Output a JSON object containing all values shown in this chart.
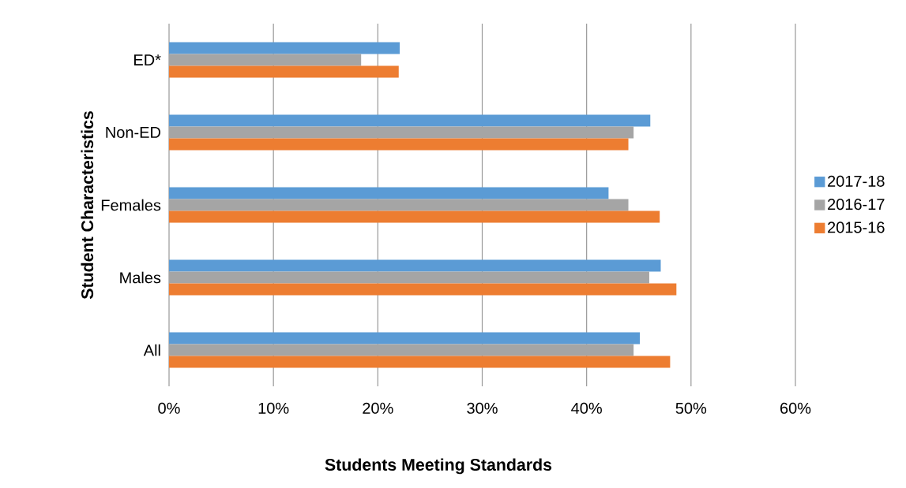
{
  "chart_data": {
    "type": "bar",
    "orientation": "horizontal",
    "categories": [
      "ED*",
      "Non-ED",
      "Females",
      "Males",
      "All"
    ],
    "series": [
      {
        "name": "2017-18",
        "color": "#5b9bd5",
        "values": [
          22.1,
          46.1,
          42.1,
          47.1,
          45.1
        ]
      },
      {
        "name": "2016-17",
        "color": "#a5a5a5",
        "values": [
          18.4,
          44.5,
          44.0,
          46.0,
          44.5
        ]
      },
      {
        "name": "2015-16",
        "color": "#ed7d31",
        "values": [
          22.0,
          44.0,
          47.0,
          48.6,
          48.0
        ]
      }
    ],
    "xlabel": "Students Meeting Standards",
    "ylabel": "Student Characteristics",
    "xlim": [
      0,
      60
    ],
    "xticks": [
      {
        "value": 0,
        "label": "0%"
      },
      {
        "value": 10,
        "label": "10%"
      },
      {
        "value": 20,
        "label": "20%"
      },
      {
        "value": 30,
        "label": "30%"
      },
      {
        "value": 40,
        "label": "40%"
      },
      {
        "value": 50,
        "label": "50%"
      },
      {
        "value": 60,
        "label": "60%"
      }
    ],
    "grid": "x",
    "legend": "right"
  }
}
